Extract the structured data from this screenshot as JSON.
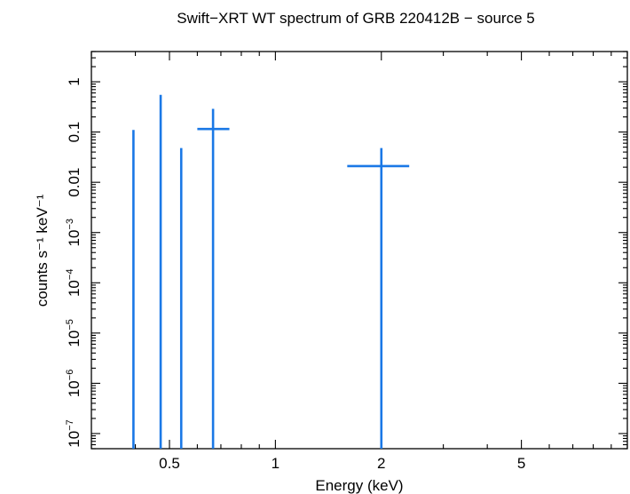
{
  "chart_data": {
    "type": "scatter",
    "title": "Swift−XRT WT spectrum of GRB 220412B − source 5",
    "xlabel": "Energy (keV)",
    "ylabel": "counts s⁻¹ keV⁻¹",
    "x_scale": "log",
    "y_scale": "log",
    "xlim": [
      0.3,
      10
    ],
    "ylim": [
      5e-08,
      4
    ],
    "x_major_ticks": [
      {
        "value": 0.5,
        "label": "0.5"
      },
      {
        "value": 1,
        "label": "1"
      },
      {
        "value": 2,
        "label": "2"
      },
      {
        "value": 5,
        "label": "5"
      }
    ],
    "y_major_ticks": [
      {
        "value": 1,
        "label": "1"
      },
      {
        "value": 0.1,
        "label": "0.1"
      },
      {
        "value": 0.01,
        "label": "0.01"
      },
      {
        "value": 0.001,
        "base": "10",
        "exp": "−3"
      },
      {
        "value": 0.0001,
        "base": "10",
        "exp": "−4"
      },
      {
        "value": 1e-05,
        "base": "10",
        "exp": "−5"
      },
      {
        "value": 1e-06,
        "base": "10",
        "exp": "−6"
      },
      {
        "value": 1e-07,
        "base": "10",
        "exp": "−7"
      }
    ],
    "grid": false,
    "series": [
      {
        "color": "#1a78e6",
        "points": [
          {
            "x": 0.395,
            "y": null,
            "y_high": 0.11,
            "x_low": 0.395,
            "x_high": 0.395
          },
          {
            "x": 0.472,
            "y": null,
            "y_high": 0.55,
            "x_low": 0.472,
            "x_high": 0.472
          },
          {
            "x": 0.54,
            "y": null,
            "y_high": 0.048,
            "x_low": 0.54,
            "x_high": 0.54
          },
          {
            "x": 0.665,
            "y": 0.115,
            "y_low": 5e-08,
            "y_high": 0.29,
            "x_low": 0.6,
            "x_high": 0.74
          },
          {
            "x": 2.0,
            "y": 0.021,
            "y_low": 5e-08,
            "y_high": 0.048,
            "x_low": 1.6,
            "x_high": 2.4
          }
        ]
      }
    ]
  }
}
